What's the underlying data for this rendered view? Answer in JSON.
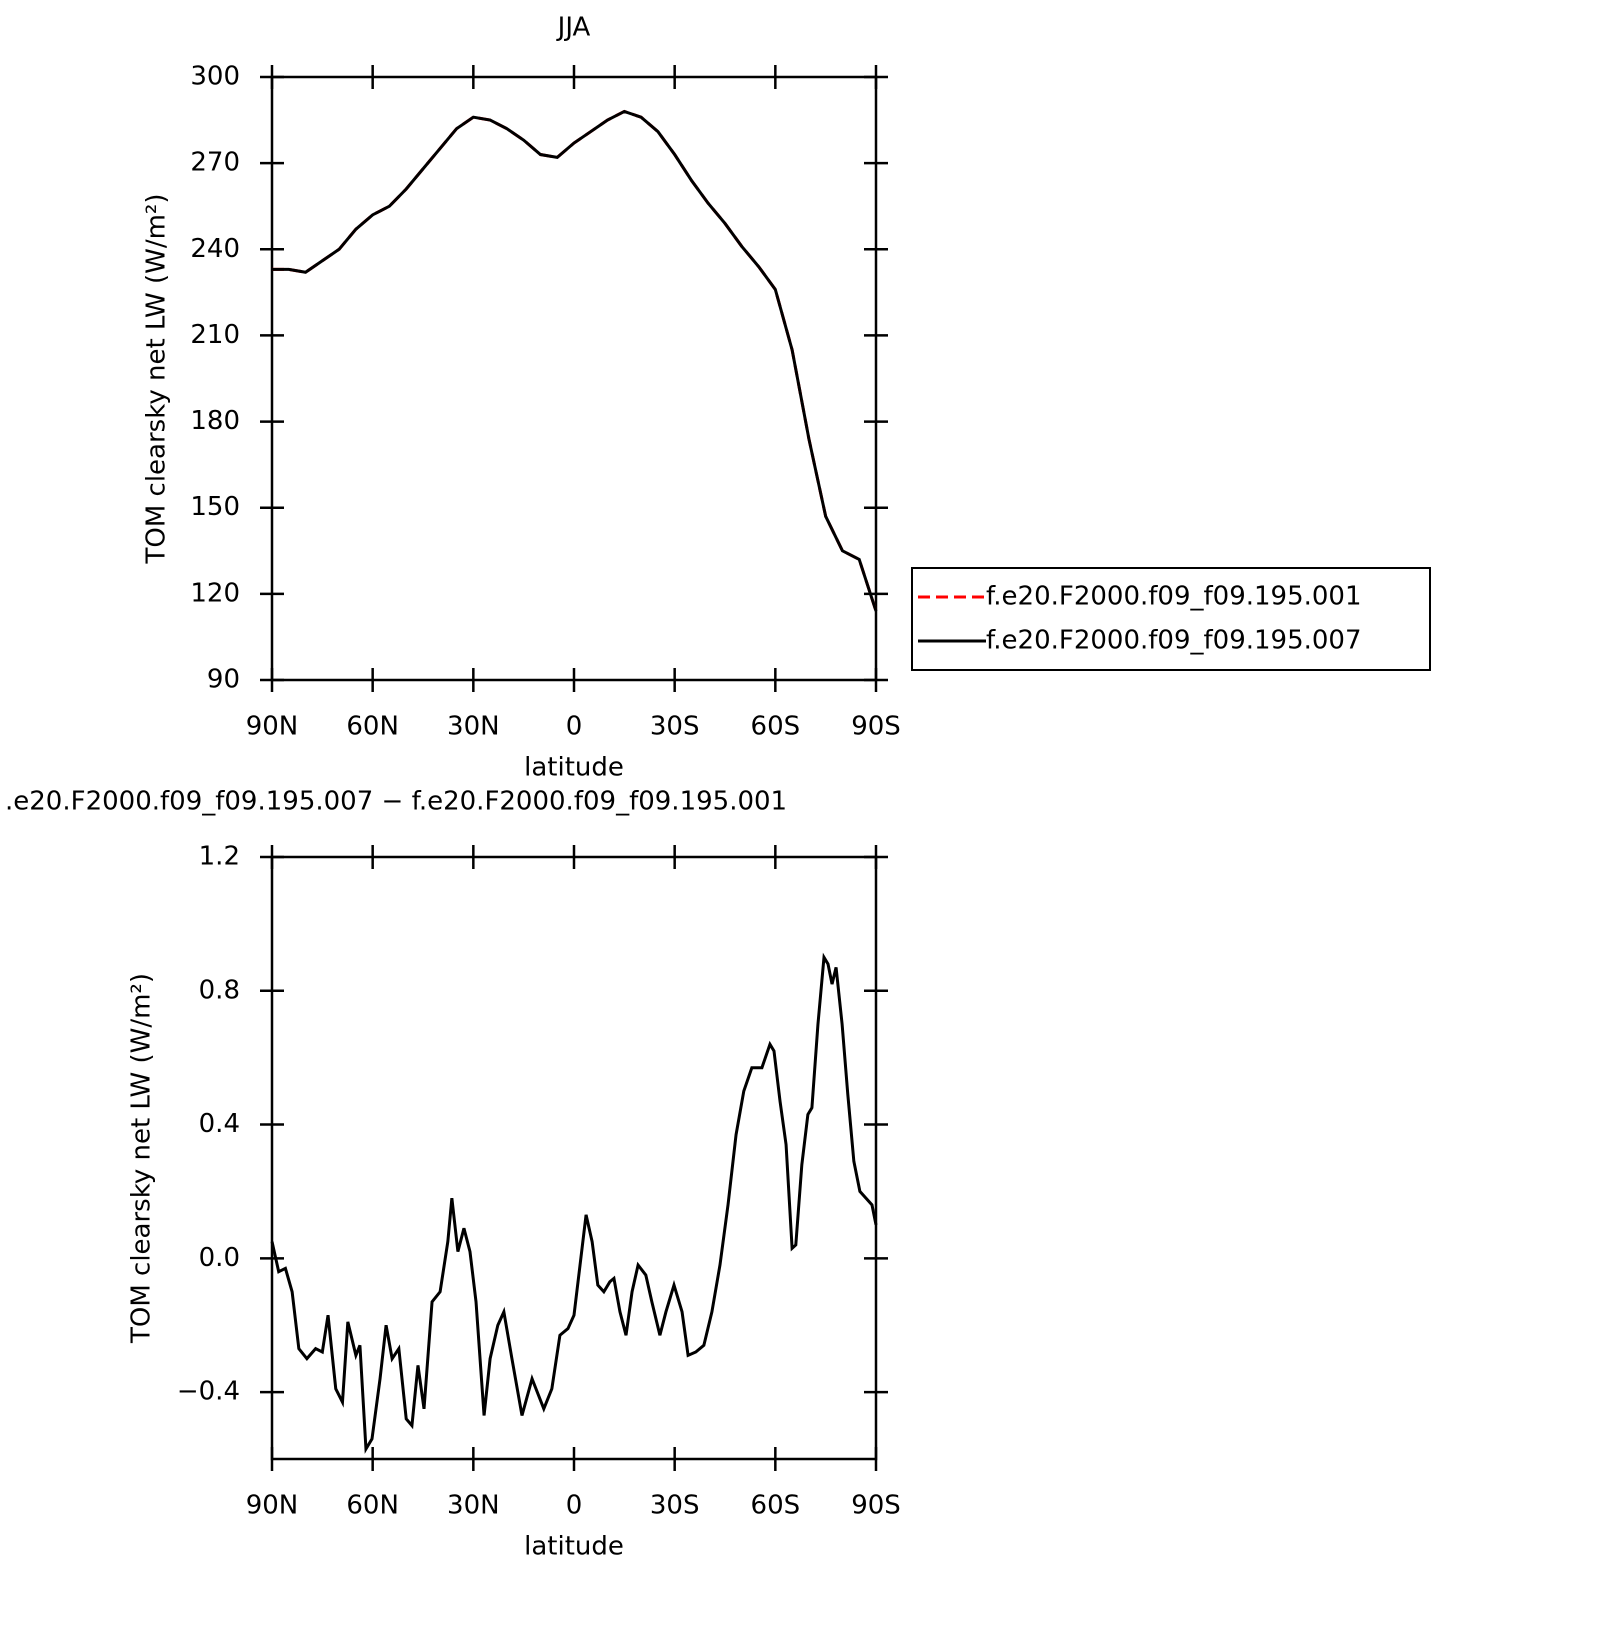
{
  "chart_data": [
    {
      "type": "line",
      "title": "JJA",
      "xlabel": "latitude",
      "ylabel": "TOM clearsky net LW (W/m²)",
      "x": [
        90,
        85,
        80,
        75,
        70,
        65,
        60,
        55,
        50,
        45,
        40,
        35,
        30,
        25,
        20,
        15,
        10,
        5,
        0,
        -5,
        -10,
        -15,
        -20,
        -25,
        -30,
        -35,
        -40,
        -45,
        -50,
        -55,
        -60,
        -65,
        -70,
        -75,
        -80,
        -85,
        -90
      ],
      "series": [
        {
          "name": "f.e20.F2000.f09_f09.195.001",
          "color": "#ff0000",
          "style": "dashed",
          "values": [
            233,
            233,
            232,
            236,
            240,
            247,
            252,
            255,
            261,
            268,
            275,
            282,
            286,
            285,
            282,
            278,
            273,
            272,
            277,
            281,
            285,
            288,
            286,
            281,
            273,
            264,
            256,
            249,
            241,
            234,
            226,
            205,
            174,
            147,
            135,
            132,
            114
          ]
        },
        {
          "name": "f.e20.F2000.f09_f09.195.007",
          "color": "#000000",
          "style": "solid",
          "values": [
            233,
            233,
            232,
            236,
            240,
            247,
            252,
            255,
            261,
            268,
            275,
            282,
            286,
            285,
            282,
            278,
            273,
            272,
            277,
            281,
            285,
            288,
            286,
            281,
            273,
            264,
            256,
            249,
            241,
            234,
            226,
            205,
            174,
            147,
            135,
            132,
            114
          ]
        }
      ],
      "xlim": [
        90,
        -90
      ],
      "xticks": [
        {
          "value": 90,
          "label": "90N"
        },
        {
          "value": 60,
          "label": "60N"
        },
        {
          "value": 30,
          "label": "30N"
        },
        0,
        {
          "value": -30,
          "label": "30S"
        },
        {
          "value": -60,
          "label": "60S"
        },
        {
          "value": -90,
          "label": "90S"
        }
      ],
      "ylim": [
        90,
        300
      ],
      "yticks": [
        90,
        120,
        150,
        180,
        210,
        240,
        270,
        300
      ],
      "legend": "right"
    },
    {
      "type": "line",
      "title": ".e20.F2000.f09_f09.195.007 − f.e20.F2000.f09_f09.195.001",
      "xlabel": "latitude",
      "ylabel": "TOM clearsky net LW (W/m²)",
      "x": [
        90,
        88,
        86,
        84,
        82,
        79.6,
        77,
        75,
        73.3,
        71,
        69,
        67.4,
        65,
        63.8,
        62,
        60.2,
        57.8,
        56,
        54.2,
        52.2,
        50,
        48.3,
        46.5,
        44.7,
        42.3,
        39.9,
        37.6,
        36.4,
        34.6,
        32.8,
        31,
        29.2,
        26.8,
        25,
        22.7,
        20.9,
        18.5,
        15.5,
        12.5,
        9,
        6.6,
        4.2,
        1.8,
        0,
        -1.8,
        -3.6,
        -5.4,
        -7.1,
        -8.9,
        -10.7,
        -11.9,
        -13.7,
        -15.5,
        -17.3,
        -19.1,
        -21.4,
        -23.2,
        -25.6,
        -27.4,
        -29.8,
        -32.2,
        -34,
        -36.3,
        -38.7,
        -41.1,
        -43.5,
        -45.9,
        -48.3,
        -50.6,
        -53,
        -56,
        -58.4,
        -59.6,
        -61.4,
        -63.2,
        -65,
        -66.1,
        -67.9,
        -69.7,
        -70.9,
        -72.7,
        -74.5,
        -75.7,
        -76.9,
        -78.1,
        -79.9,
        -81.6,
        -83.4,
        -85.2,
        -87,
        -88.8,
        -90
      ],
      "series": [
        {
          "color": "#000000",
          "style": "solid",
          "values": [
            0.05,
            -0.04,
            -0.03,
            -0.1,
            -0.27,
            -0.3,
            -0.27,
            -0.28,
            -0.17,
            -0.39,
            -0.43,
            -0.19,
            -0.29,
            -0.26,
            -0.57,
            -0.54,
            -0.36,
            -0.2,
            -0.3,
            -0.27,
            -0.48,
            -0.5,
            -0.32,
            -0.45,
            -0.13,
            -0.1,
            0.05,
            0.18,
            0.02,
            0.09,
            0.02,
            -0.13,
            -0.47,
            -0.3,
            -0.2,
            -0.16,
            -0.3,
            -0.47,
            -0.36,
            -0.45,
            -0.39,
            -0.23,
            -0.21,
            -0.17,
            -0.02,
            0.13,
            0.05,
            -0.08,
            -0.1,
            -0.07,
            -0.06,
            -0.16,
            -0.23,
            -0.1,
            -0.02,
            -0.05,
            -0.13,
            -0.23,
            -0.16,
            -0.08,
            -0.16,
            -0.29,
            -0.28,
            -0.26,
            -0.16,
            -0.02,
            0.16,
            0.37,
            0.5,
            0.57,
            0.57,
            0.64,
            0.62,
            0.47,
            0.34,
            0.03,
            0.04,
            0.28,
            0.43,
            0.45,
            0.7,
            0.9,
            0.88,
            0.82,
            0.87,
            0.7,
            0.49,
            0.29,
            0.2,
            0.18,
            0.16,
            0.1
          ]
        }
      ],
      "xlim": [
        90,
        -90
      ],
      "xticks": [
        {
          "value": 90,
          "label": "90N"
        },
        {
          "value": 60,
          "label": "60N"
        },
        {
          "value": 30,
          "label": "30N"
        },
        0,
        {
          "value": -30,
          "label": "30S"
        },
        {
          "value": -60,
          "label": "60S"
        },
        {
          "value": -90,
          "label": "90S"
        }
      ],
      "ylim": [
        -0.6,
        1.2
      ],
      "yticks": [
        {
          "value": -0.4,
          "label": "−0.4"
        },
        {
          "value": 0,
          "label": "0.0"
        },
        0.4,
        0.8,
        1.2
      ]
    }
  ]
}
